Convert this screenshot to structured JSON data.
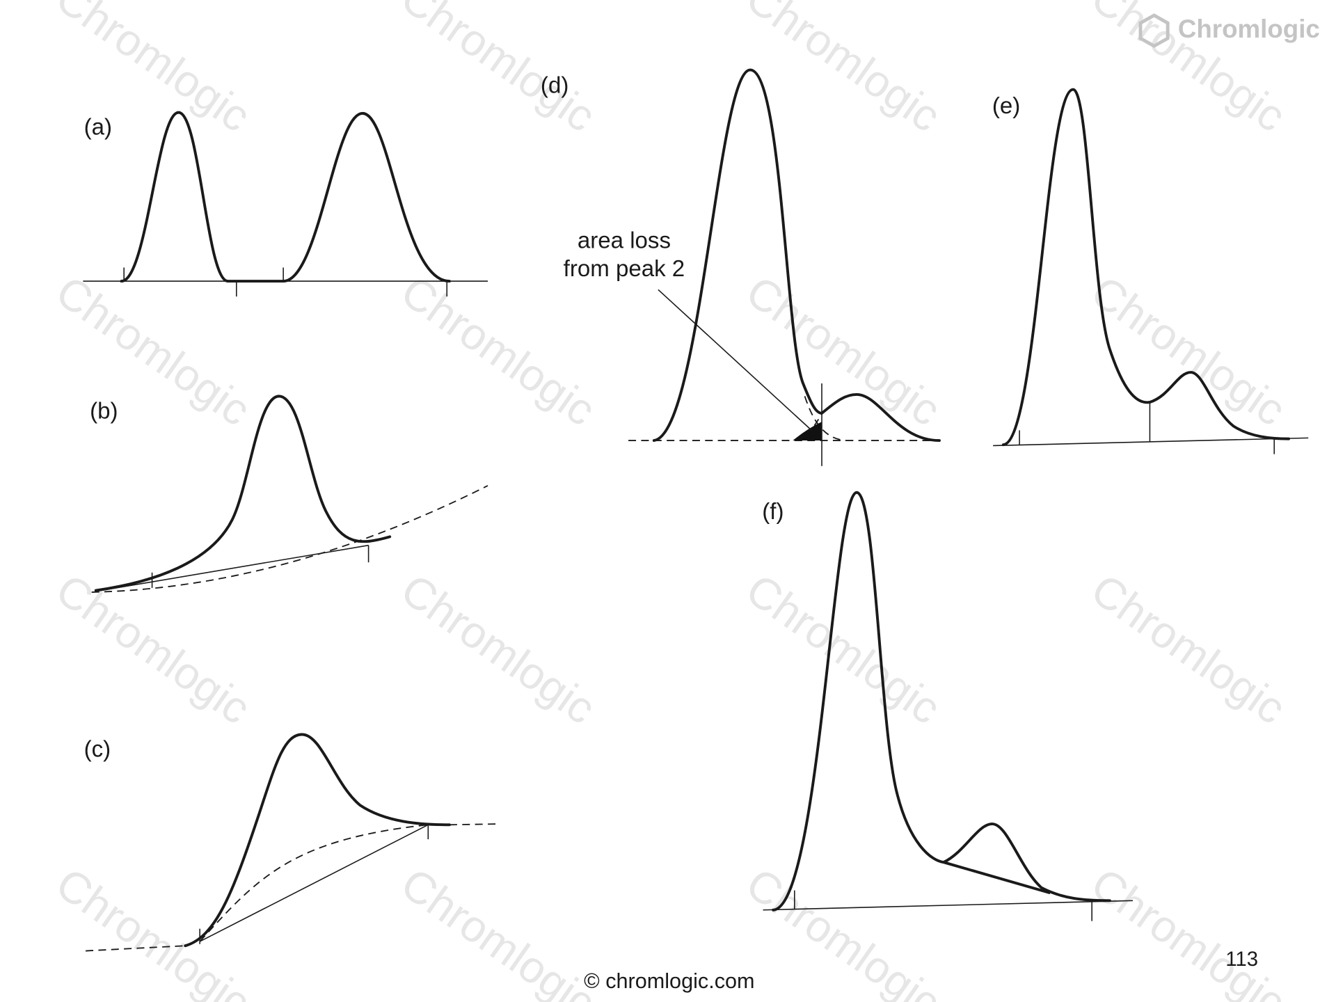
{
  "logo": "Chromlogic",
  "watermark": "Chromlogic",
  "panels": [
    "(a)",
    "(b)",
    "(c)",
    "(d)",
    "(e)",
    "(f)"
  ],
  "annotation": {
    "lines": [
      "area loss",
      "from peak 2"
    ]
  },
  "footer": "© chromlogic.com",
  "page_number": "113"
}
